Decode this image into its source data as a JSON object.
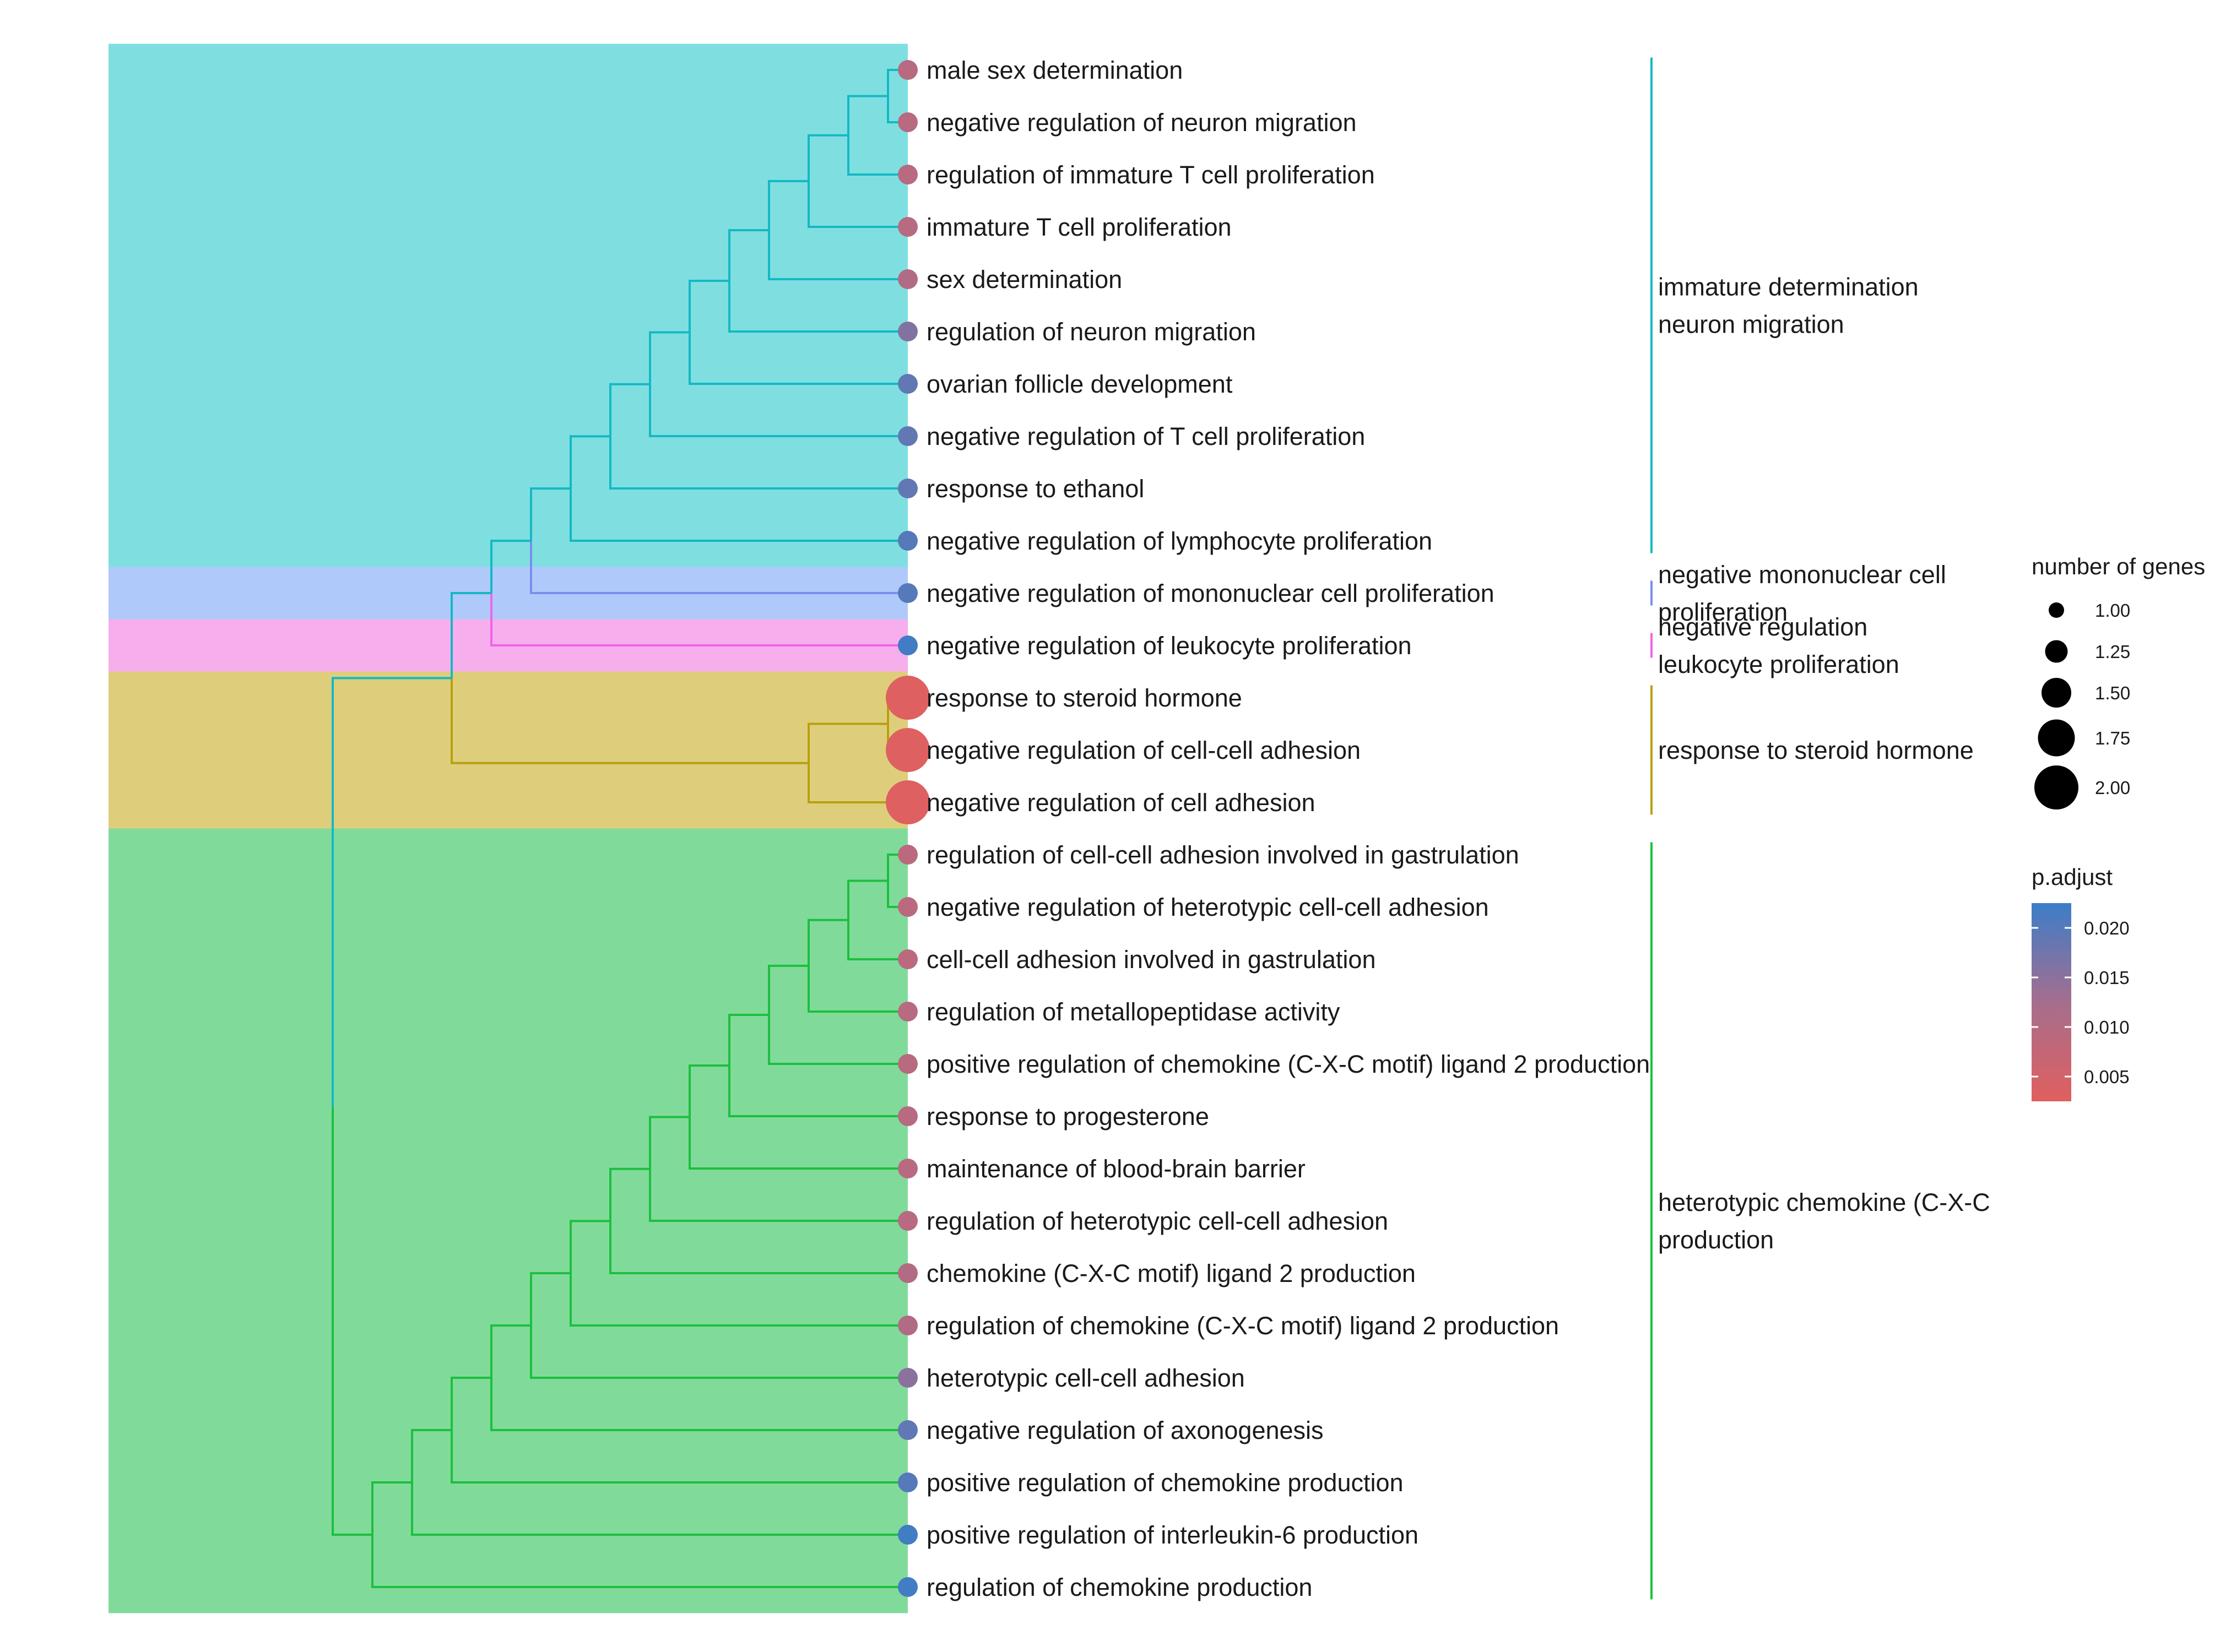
{
  "chart_data": {
    "type": "dendrogram",
    "description_fields": [
      "term",
      "cluster",
      "count",
      "p_adjust"
    ],
    "terms": [
      {
        "term": "male sex determination",
        "cluster": 0,
        "count": 1,
        "p_adjust": 0.0095
      },
      {
        "term": "negative regulation of neuron migration",
        "cluster": 0,
        "count": 1,
        "p_adjust": 0.0095
      },
      {
        "term": "regulation of immature T cell proliferation",
        "cluster": 0,
        "count": 1,
        "p_adjust": 0.0095
      },
      {
        "term": "immature T cell proliferation",
        "cluster": 0,
        "count": 1,
        "p_adjust": 0.0095
      },
      {
        "term": "sex determination",
        "cluster": 0,
        "count": 1,
        "p_adjust": 0.0105
      },
      {
        "term": "regulation of neuron migration",
        "cluster": 0,
        "count": 1,
        "p_adjust": 0.016
      },
      {
        "term": "ovarian follicle development",
        "cluster": 0,
        "count": 1,
        "p_adjust": 0.019
      },
      {
        "term": "negative regulation of T cell proliferation",
        "cluster": 0,
        "count": 1,
        "p_adjust": 0.019
      },
      {
        "term": "response to ethanol",
        "cluster": 0,
        "count": 1,
        "p_adjust": 0.019
      },
      {
        "term": "negative regulation of lymphocyte proliferation",
        "cluster": 0,
        "count": 1,
        "p_adjust": 0.02
      },
      {
        "term": "negative regulation of mononuclear cell proliferation",
        "cluster": 1,
        "count": 1,
        "p_adjust": 0.02
      },
      {
        "term": "negative regulation of leukocyte proliferation",
        "cluster": 2,
        "count": 1,
        "p_adjust": 0.022
      },
      {
        "term": "response to steroid hormone",
        "cluster": 3,
        "count": 2,
        "p_adjust": 0.003
      },
      {
        "term": "negative regulation of cell-cell adhesion",
        "cluster": 3,
        "count": 2,
        "p_adjust": 0.003
      },
      {
        "term": "negative regulation of cell adhesion",
        "cluster": 3,
        "count": 2,
        "p_adjust": 0.003
      },
      {
        "term": "regulation of cell-cell adhesion involved in gastrulation",
        "cluster": 4,
        "count": 1,
        "p_adjust": 0.009
      },
      {
        "term": "negative regulation of heterotypic cell-cell adhesion",
        "cluster": 4,
        "count": 1,
        "p_adjust": 0.009
      },
      {
        "term": "cell-cell adhesion involved in gastrulation",
        "cluster": 4,
        "count": 1,
        "p_adjust": 0.009
      },
      {
        "term": "regulation of metallopeptidase activity",
        "cluster": 4,
        "count": 1,
        "p_adjust": 0.0095
      },
      {
        "term": "positive regulation of chemokine (C-X-C motif) ligand 2 production",
        "cluster": 4,
        "count": 1,
        "p_adjust": 0.0095
      },
      {
        "term": "response to progesterone",
        "cluster": 4,
        "count": 1,
        "p_adjust": 0.0095
      },
      {
        "term": "maintenance of blood-brain barrier",
        "cluster": 4,
        "count": 1,
        "p_adjust": 0.0095
      },
      {
        "term": "regulation of heterotypic cell-cell adhesion",
        "cluster": 4,
        "count": 1,
        "p_adjust": 0.0095
      },
      {
        "term": "chemokine (C-X-C motif) ligand 2 production",
        "cluster": 4,
        "count": 1,
        "p_adjust": 0.0105
      },
      {
        "term": "regulation of chemokine (C-X-C motif) ligand 2 production",
        "cluster": 4,
        "count": 1,
        "p_adjust": 0.0105
      },
      {
        "term": "heterotypic cell-cell adhesion",
        "cluster": 4,
        "count": 1,
        "p_adjust": 0.015
      },
      {
        "term": "negative regulation of axonogenesis",
        "cluster": 4,
        "count": 1,
        "p_adjust": 0.019
      },
      {
        "term": "positive regulation of chemokine production",
        "cluster": 4,
        "count": 1,
        "p_adjust": 0.02
      },
      {
        "term": "positive regulation of interleukin-6 production",
        "cluster": 4,
        "count": 1,
        "p_adjust": 0.022
      },
      {
        "term": "regulation of chemokine production",
        "cluster": 4,
        "count": 1,
        "p_adjust": 0.022
      }
    ],
    "clusters": [
      {
        "label_lines": [
          "immature determination",
          "neuron migration"
        ],
        "color": "#14B8C4",
        "band_color": "#7FDFE0",
        "first": 0,
        "last": 9
      },
      {
        "label_lines": [
          "negative mononuclear cell",
          "proliferation"
        ],
        "color": "#7B8EF0",
        "band_color": "#AFC9FB",
        "first": 10,
        "last": 10
      },
      {
        "label_lines": [
          "negative regulation",
          "leukocyte proliferation"
        ],
        "color": "#F064E8",
        "band_color": "#F7AEEC",
        "first": 11,
        "last": 11
      },
      {
        "label_lines": [
          "response to steroid hormone"
        ],
        "color": "#B8A010",
        "band_color": "#DECE7C",
        "first": 12,
        "last": 14
      },
      {
        "label_lines": [
          "heterotypic chemokine (C-X-C",
          "production"
        ],
        "color": "#1DBF3E",
        "band_color": "#80DB9B",
        "first": 15,
        "last": 29
      }
    ],
    "merges": [
      [
        0,
        1,
        0.95
      ],
      [
        -1,
        2,
        0.85
      ],
      [
        -2,
        3,
        0.75
      ],
      [
        -3,
        4,
        0.65
      ],
      [
        -4,
        5,
        0.55
      ],
      [
        -5,
        6,
        0.45
      ],
      [
        -6,
        7,
        0.35
      ],
      [
        -7,
        8,
        0.25
      ],
      [
        -8,
        9,
        0.15
      ],
      [
        -9,
        10,
        0.05
      ],
      [
        -10,
        11,
        -0.05
      ],
      [
        12,
        13,
        0.95
      ],
      [
        -12,
        14,
        0.75
      ],
      [
        -11,
        -13,
        -0.15
      ],
      [
        15,
        16,
        0.95
      ],
      [
        -15,
        17,
        0.85
      ],
      [
        -16,
        18,
        0.75
      ],
      [
        -17,
        19,
        0.65
      ],
      [
        -18,
        20,
        0.55
      ],
      [
        -19,
        21,
        0.45
      ],
      [
        -20,
        22,
        0.35
      ],
      [
        -21,
        23,
        0.25
      ],
      [
        -22,
        24,
        0.15
      ],
      [
        -23,
        25,
        0.05
      ],
      [
        -24,
        26,
        -0.05
      ],
      [
        -25,
        27,
        -0.15
      ],
      [
        -26,
        28,
        -0.25
      ],
      [
        -27,
        29,
        -0.35
      ],
      [
        -14,
        -28,
        -0.45
      ]
    ],
    "legend_size": {
      "title": "number of genes",
      "values": [
        "1.00",
        "1.25",
        "1.50",
        "1.75",
        "2.00"
      ]
    },
    "legend_color": {
      "title": "p.adjust",
      "ticks": [
        "0.020",
        "0.015",
        "0.010",
        "0.005"
      ],
      "range": [
        0.0025,
        0.0225
      ],
      "low_color": "#E15F5F",
      "high_color": "#3C7DC8"
    }
  }
}
